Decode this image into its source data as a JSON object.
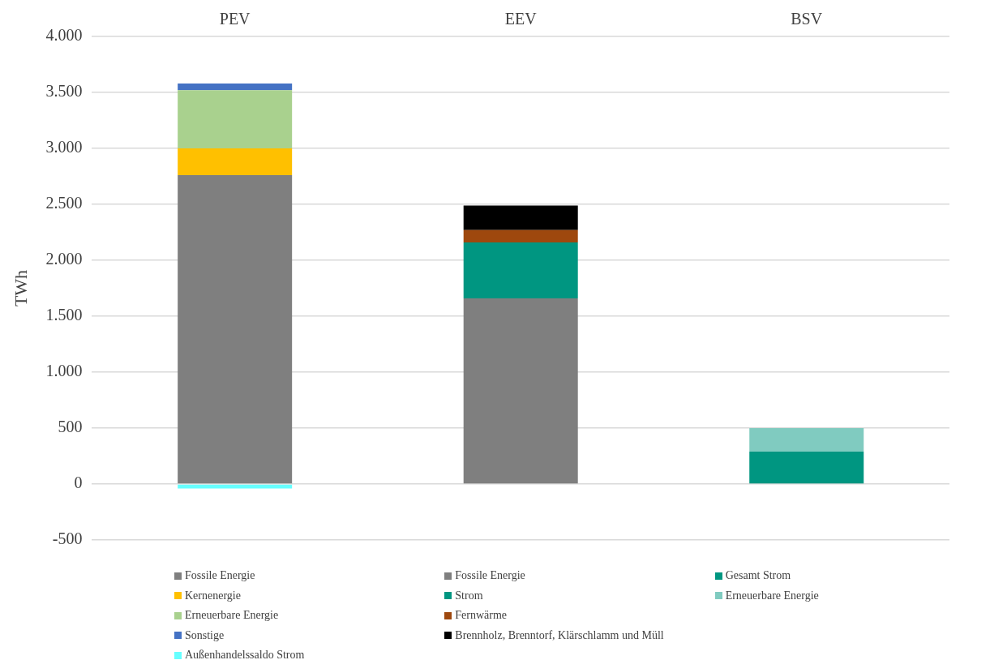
{
  "chart_data": {
    "type": "bar",
    "stacked": true,
    "ylabel": "TWh",
    "categories": [
      "PEV",
      "EEV",
      "BSV"
    ],
    "series": [
      {
        "name": "Fossile Energie",
        "color": "#7f7f7f",
        "values": [
          2760,
          null,
          null
        ]
      },
      {
        "name": "Kernenergie",
        "color": "#ffc000",
        "values": [
          240,
          null,
          null
        ]
      },
      {
        "name": "Erneuerbare Energie",
        "color": "#a9d18e",
        "values": [
          520,
          null,
          null
        ]
      },
      {
        "name": "Sonstige",
        "color": "#4472c4",
        "values": [
          60,
          null,
          null
        ]
      },
      {
        "name": "Außenhandelssaldo Strom",
        "color": "#66ffff",
        "values": [
          -40,
          null,
          null
        ]
      },
      {
        "name": "Fossile Energie",
        "color": "#7f7f7f",
        "values": [
          null,
          1660,
          null
        ]
      },
      {
        "name": "Strom",
        "color": "#009681",
        "values": [
          null,
          500,
          null
        ]
      },
      {
        "name": "Fernwärme",
        "color": "#9e480e",
        "values": [
          null,
          110,
          null
        ]
      },
      {
        "name": "Brennholz, Brenntorf, Klärschlamm und Müll",
        "color": "#000000",
        "values": [
          null,
          220,
          null
        ]
      },
      {
        "name": "Gesamt Strom",
        "color": "#009681",
        "values": [
          null,
          null,
          290
        ]
      },
      {
        "name": "Erneuerbare Energie",
        "color": "#80cbc0",
        "values": [
          null,
          null,
          210
        ]
      }
    ],
    "ylim": [
      -500,
      4000
    ],
    "yticks": [
      {
        "value": -500,
        "label": "-500"
      },
      0,
      500,
      {
        "value": 1000,
        "label": "1.000"
      },
      {
        "value": 1500,
        "label": "1.500"
      },
      {
        "value": 2000,
        "label": "2.000"
      },
      {
        "value": 2500,
        "label": "2.500"
      },
      {
        "value": 3000,
        "label": "3.000"
      },
      {
        "value": 3500,
        "label": "3.500"
      },
      {
        "value": 4000,
        "label": "4.000"
      }
    ],
    "grid": "y",
    "legend": "bottom"
  }
}
